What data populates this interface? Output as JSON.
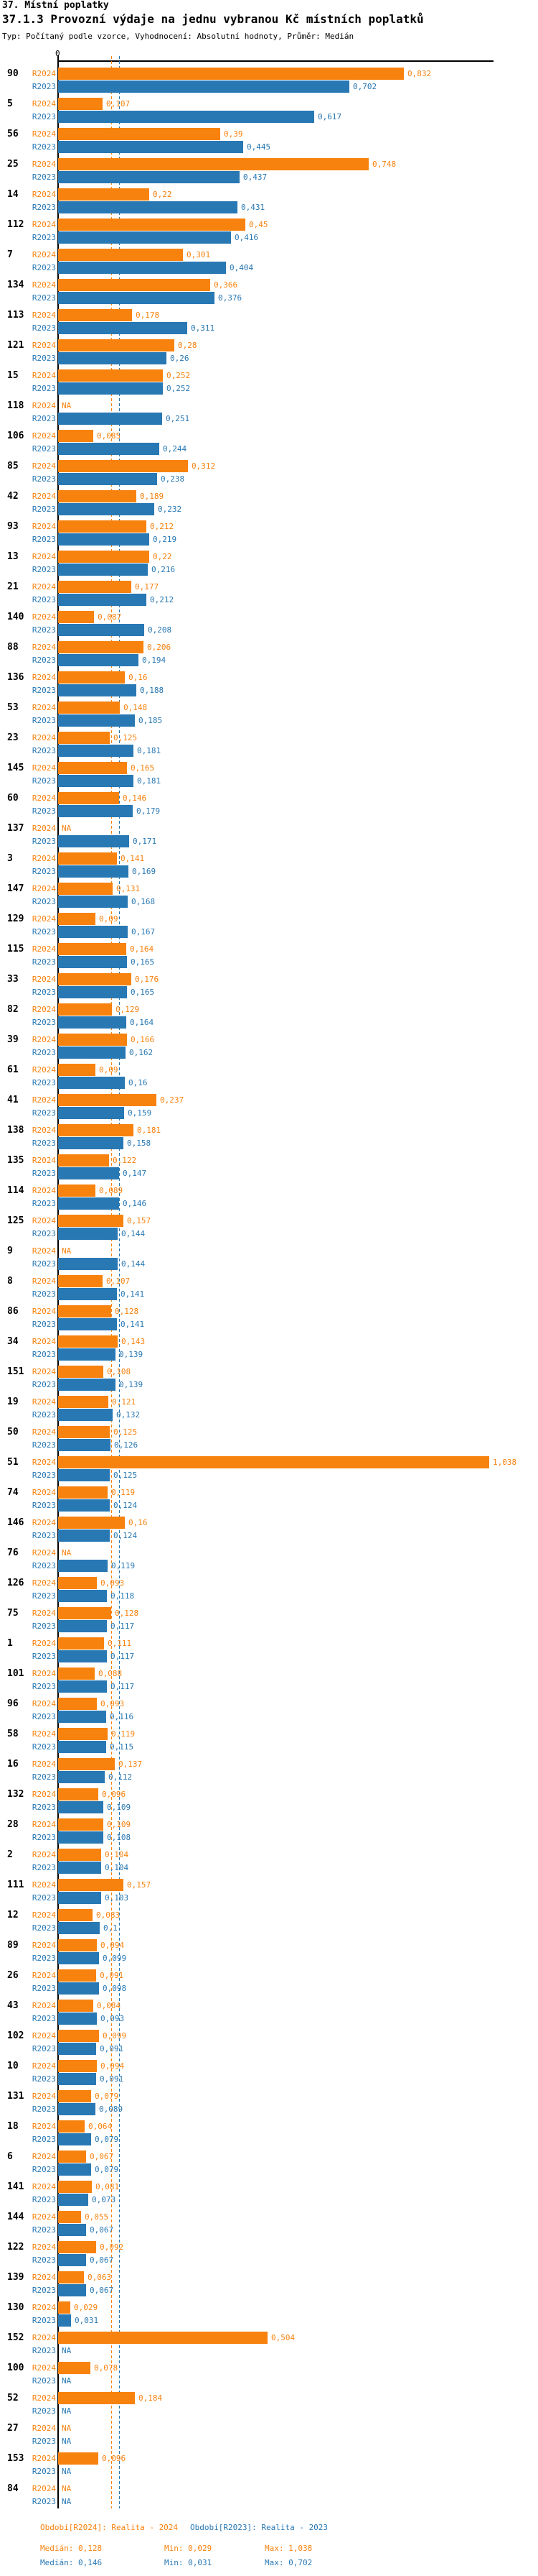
{
  "header": {
    "title": "37. Místní poplatky",
    "subtitle": "37.1.3 Provozní výdaje na jednu vybranou Kč místních poplatků",
    "meta": "Typ: Počítaný podle vzorce, Vyhodnocení: Absolutní hodnoty, Průměr: Medián"
  },
  "axis": {
    "zero_label": "0"
  },
  "na_label": "NA",
  "series": {
    "r2024": {
      "label": "R2024",
      "legend": "Období[R2024]: Realita - 2024",
      "median_label": "Medián: 0,128",
      "min_label": "Min: 0,029",
      "max_label": "Max: 1,038",
      "color": "#F8820E",
      "median": 0.128
    },
    "r2023": {
      "label": "R2023",
      "legend": "Období[R2023]: Realita - 2023",
      "median_label": "Medián: 0,146",
      "min_label": "Min: 0,031",
      "max_label": "Max: 0,702",
      "color": "#2878B4",
      "median": 0.146
    }
  },
  "chart_data": {
    "type": "bar",
    "orientation": "horizontal",
    "title": "37. Místní poplatky",
    "subtitle": "37.1.3 Provozní výdaje na jednu vybranou Kč místních poplatků",
    "note": "Typ: Počítaný podle vzorce, Vyhodnocení: Absolutní hodnoty, Průměr: Medián",
    "xlim": [
      0,
      1.05
    ],
    "x_ticks": [
      "0"
    ],
    "legend_position": "bottom",
    "series_meta": [
      {
        "name": "R2024",
        "legend": "Období[R2024]: Realita - 2024",
        "median": 0.128,
        "min": 0.029,
        "max": 1.038,
        "color": "#F8820E"
      },
      {
        "name": "R2023",
        "legend": "Období[R2023]: Realita - 2023",
        "median": 0.146,
        "min": 0.031,
        "max": 0.702,
        "color": "#2878B4"
      }
    ],
    "groups": [
      {
        "id": "90",
        "r2024": 0.832,
        "r2024_label": "0,832",
        "r2023": 0.702,
        "r2023_label": "0,702"
      },
      {
        "id": "5",
        "r2024": 0.107,
        "r2024_label": "0,107",
        "r2023": 0.617,
        "r2023_label": "0,617"
      },
      {
        "id": "56",
        "r2024": 0.39,
        "r2024_label": "0,39",
        "r2023": 0.445,
        "r2023_label": "0,445"
      },
      {
        "id": "25",
        "r2024": 0.748,
        "r2024_label": "0,748",
        "r2023": 0.437,
        "r2023_label": "0,437"
      },
      {
        "id": "14",
        "r2024": 0.22,
        "r2024_label": "0,22",
        "r2023": 0.431,
        "r2023_label": "0,431"
      },
      {
        "id": "112",
        "r2024": 0.45,
        "r2024_label": "0,45",
        "r2023": 0.416,
        "r2023_label": "0,416"
      },
      {
        "id": "7",
        "r2024": 0.301,
        "r2024_label": "0,301",
        "r2023": 0.404,
        "r2023_label": "0,404"
      },
      {
        "id": "134",
        "r2024": 0.366,
        "r2024_label": "0,366",
        "r2023": 0.376,
        "r2023_label": "0,376"
      },
      {
        "id": "113",
        "r2024": 0.178,
        "r2024_label": "0,178",
        "r2023": 0.311,
        "r2023_label": "0,311"
      },
      {
        "id": "121",
        "r2024": 0.28,
        "r2024_label": "0,28",
        "r2023": 0.26,
        "r2023_label": "0,26"
      },
      {
        "id": "15",
        "r2024": 0.252,
        "r2024_label": "0,252",
        "r2023": 0.252,
        "r2023_label": "0,252"
      },
      {
        "id": "118",
        "r2024": null,
        "r2024_label": "NA",
        "r2023": 0.251,
        "r2023_label": "0,251"
      },
      {
        "id": "106",
        "r2024": 0.085,
        "r2024_label": "0,085",
        "r2023": 0.244,
        "r2023_label": "0,244"
      },
      {
        "id": "85",
        "r2024": 0.312,
        "r2024_label": "0,312",
        "r2023": 0.238,
        "r2023_label": "0,238"
      },
      {
        "id": "42",
        "r2024": 0.189,
        "r2024_label": "0,189",
        "r2023": 0.232,
        "r2023_label": "0,232"
      },
      {
        "id": "93",
        "r2024": 0.212,
        "r2024_label": "0,212",
        "r2023": 0.219,
        "r2023_label": "0,219"
      },
      {
        "id": "13",
        "r2024": 0.22,
        "r2024_label": "0,22",
        "r2023": 0.216,
        "r2023_label": "0,216"
      },
      {
        "id": "21",
        "r2024": 0.177,
        "r2024_label": "0,177",
        "r2023": 0.212,
        "r2023_label": "0,212"
      },
      {
        "id": "140",
        "r2024": 0.087,
        "r2024_label": "0,087",
        "r2023": 0.208,
        "r2023_label": "0,208"
      },
      {
        "id": "88",
        "r2024": 0.206,
        "r2024_label": "0,206",
        "r2023": 0.194,
        "r2023_label": "0,194"
      },
      {
        "id": "136",
        "r2024": 0.16,
        "r2024_label": "0,16",
        "r2023": 0.188,
        "r2023_label": "0,188"
      },
      {
        "id": "53",
        "r2024": 0.148,
        "r2024_label": "0,148",
        "r2023": 0.185,
        "r2023_label": "0,185"
      },
      {
        "id": "23",
        "r2024": 0.125,
        "r2024_label": "0,125",
        "r2023": 0.181,
        "r2023_label": "0,181"
      },
      {
        "id": "145",
        "r2024": 0.165,
        "r2024_label": "0,165",
        "r2023": 0.181,
        "r2023_label": "0,181"
      },
      {
        "id": "60",
        "r2024": 0.146,
        "r2024_label": "0,146",
        "r2023": 0.179,
        "r2023_label": "0,179"
      },
      {
        "id": "137",
        "r2024": null,
        "r2024_label": "NA",
        "r2023": 0.171,
        "r2023_label": "0,171"
      },
      {
        "id": "3",
        "r2024": 0.141,
        "r2024_label": "0,141",
        "r2023": 0.169,
        "r2023_label": "0,169"
      },
      {
        "id": "147",
        "r2024": 0.131,
        "r2024_label": "0,131",
        "r2023": 0.168,
        "r2023_label": "0,168"
      },
      {
        "id": "129",
        "r2024": 0.09,
        "r2024_label": "0,09",
        "r2023": 0.167,
        "r2023_label": "0,167"
      },
      {
        "id": "115",
        "r2024": 0.164,
        "r2024_label": "0,164",
        "r2023": 0.165,
        "r2023_label": "0,165"
      },
      {
        "id": "33",
        "r2024": 0.176,
        "r2024_label": "0,176",
        "r2023": 0.165,
        "r2023_label": "0,165"
      },
      {
        "id": "82",
        "r2024": 0.129,
        "r2024_label": "0,129",
        "r2023": 0.164,
        "r2023_label": "0,164"
      },
      {
        "id": "39",
        "r2024": 0.166,
        "r2024_label": "0,166",
        "r2023": 0.162,
        "r2023_label": "0,162"
      },
      {
        "id": "61",
        "r2024": 0.09,
        "r2024_label": "0,09",
        "r2023": 0.16,
        "r2023_label": "0,16"
      },
      {
        "id": "41",
        "r2024": 0.237,
        "r2024_label": "0,237",
        "r2023": 0.159,
        "r2023_label": "0,159"
      },
      {
        "id": "138",
        "r2024": 0.181,
        "r2024_label": "0,181",
        "r2023": 0.158,
        "r2023_label": "0,158"
      },
      {
        "id": "135",
        "r2024": 0.122,
        "r2024_label": "0,122",
        "r2023": 0.147,
        "r2023_label": "0,147"
      },
      {
        "id": "114",
        "r2024": 0.089,
        "r2024_label": "0,089",
        "r2023": 0.146,
        "r2023_label": "0,146"
      },
      {
        "id": "125",
        "r2024": 0.157,
        "r2024_label": "0,157",
        "r2023": 0.144,
        "r2023_label": "0,144"
      },
      {
        "id": "9",
        "r2024": null,
        "r2024_label": "NA",
        "r2023": 0.144,
        "r2023_label": "0,144"
      },
      {
        "id": "8",
        "r2024": 0.107,
        "r2024_label": "0,107",
        "r2023": 0.141,
        "r2023_label": "0,141"
      },
      {
        "id": "86",
        "r2024": 0.128,
        "r2024_label": "0,128",
        "r2023": 0.141,
        "r2023_label": "0,141"
      },
      {
        "id": "34",
        "r2024": 0.143,
        "r2024_label": "0,143",
        "r2023": 0.139,
        "r2023_label": "0,139"
      },
      {
        "id": "151",
        "r2024": 0.108,
        "r2024_label": "0,108",
        "r2023": 0.139,
        "r2023_label": "0,139"
      },
      {
        "id": "19",
        "r2024": 0.121,
        "r2024_label": "0,121",
        "r2023": 0.132,
        "r2023_label": "0,132"
      },
      {
        "id": "50",
        "r2024": 0.125,
        "r2024_label": "0,125",
        "r2023": 0.126,
        "r2023_label": "0,126"
      },
      {
        "id": "51",
        "r2024": 1.038,
        "r2024_label": "1,038",
        "r2023": 0.125,
        "r2023_label": "0,125"
      },
      {
        "id": "74",
        "r2024": 0.119,
        "r2024_label": "0,119",
        "r2023": 0.124,
        "r2023_label": "0,124"
      },
      {
        "id": "146",
        "r2024": 0.16,
        "r2024_label": "0,16",
        "r2023": 0.124,
        "r2023_label": "0,124"
      },
      {
        "id": "76",
        "r2024": null,
        "r2024_label": "NA",
        "r2023": 0.119,
        "r2023_label": "0,119"
      },
      {
        "id": "126",
        "r2024": 0.093,
        "r2024_label": "0,093",
        "r2023": 0.118,
        "r2023_label": "0,118"
      },
      {
        "id": "75",
        "r2024": 0.128,
        "r2024_label": "0,128",
        "r2023": 0.117,
        "r2023_label": "0,117"
      },
      {
        "id": "1",
        "r2024": 0.111,
        "r2024_label": "0,111",
        "r2023": 0.117,
        "r2023_label": "0,117"
      },
      {
        "id": "101",
        "r2024": 0.088,
        "r2024_label": "0,088",
        "r2023": 0.117,
        "r2023_label": "0,117"
      },
      {
        "id": "96",
        "r2024": 0.093,
        "r2024_label": "0,093",
        "r2023": 0.116,
        "r2023_label": "0,116"
      },
      {
        "id": "58",
        "r2024": 0.119,
        "r2024_label": "0,119",
        "r2023": 0.115,
        "r2023_label": "0,115"
      },
      {
        "id": "16",
        "r2024": 0.137,
        "r2024_label": "0,137",
        "r2023": 0.112,
        "r2023_label": "0,112"
      },
      {
        "id": "132",
        "r2024": 0.096,
        "r2024_label": "0,096",
        "r2023": 0.109,
        "r2023_label": "0,109"
      },
      {
        "id": "28",
        "r2024": 0.109,
        "r2024_label": "0,109",
        "r2023": 0.108,
        "r2023_label": "0,108"
      },
      {
        "id": "2",
        "r2024": 0.104,
        "r2024_label": "0,104",
        "r2023": 0.104,
        "r2023_label": "0,104"
      },
      {
        "id": "111",
        "r2024": 0.157,
        "r2024_label": "0,157",
        "r2023": 0.103,
        "r2023_label": "0,103"
      },
      {
        "id": "12",
        "r2024": 0.083,
        "r2024_label": "0,083",
        "r2023": 0.1,
        "r2023_label": "0,1"
      },
      {
        "id": "89",
        "r2024": 0.094,
        "r2024_label": "0,094",
        "r2023": 0.099,
        "r2023_label": "0,099"
      },
      {
        "id": "26",
        "r2024": 0.091,
        "r2024_label": "0,091",
        "r2023": 0.098,
        "r2023_label": "0,098"
      },
      {
        "id": "43",
        "r2024": 0.084,
        "r2024_label": "0,084",
        "r2023": 0.093,
        "r2023_label": "0,093"
      },
      {
        "id": "102",
        "r2024": 0.099,
        "r2024_label": "0,099",
        "r2023": 0.091,
        "r2023_label": "0,091"
      },
      {
        "id": "10",
        "r2024": 0.094,
        "r2024_label": "0,094",
        "r2023": 0.091,
        "r2023_label": "0,091"
      },
      {
        "id": "131",
        "r2024": 0.079,
        "r2024_label": "0,079",
        "r2023": 0.089,
        "r2023_label": "0,089"
      },
      {
        "id": "18",
        "r2024": 0.064,
        "r2024_label": "0,064",
        "r2023": 0.079,
        "r2023_label": "0,079"
      },
      {
        "id": "6",
        "r2024": 0.067,
        "r2024_label": "0,067",
        "r2023": 0.079,
        "r2023_label": "0,079"
      },
      {
        "id": "141",
        "r2024": 0.081,
        "r2024_label": "0,081",
        "r2023": 0.073,
        "r2023_label": "0,073"
      },
      {
        "id": "144",
        "r2024": 0.055,
        "r2024_label": "0,055",
        "r2023": 0.067,
        "r2023_label": "0,067"
      },
      {
        "id": "122",
        "r2024": 0.092,
        "r2024_label": "0,092",
        "r2023": 0.067,
        "r2023_label": "0,067"
      },
      {
        "id": "139",
        "r2024": 0.063,
        "r2024_label": "0,063",
        "r2023": 0.067,
        "r2023_label": "0,067"
      },
      {
        "id": "130",
        "r2024": 0.029,
        "r2024_label": "0,029",
        "r2023": 0.031,
        "r2023_label": "0,031"
      },
      {
        "id": "152",
        "r2024": 0.504,
        "r2024_label": "0,504",
        "r2023": null,
        "r2023_label": "NA"
      },
      {
        "id": "100",
        "r2024": 0.078,
        "r2024_label": "0,078",
        "r2023": null,
        "r2023_label": "NA"
      },
      {
        "id": "52",
        "r2024": 0.184,
        "r2024_label": "0,184",
        "r2023": null,
        "r2023_label": "NA"
      },
      {
        "id": "27",
        "r2024": null,
        "r2024_label": "NA",
        "r2023": null,
        "r2023_label": "NA"
      },
      {
        "id": "153",
        "r2024": 0.096,
        "r2024_label": "0,096",
        "r2023": null,
        "r2023_label": "NA"
      },
      {
        "id": "84",
        "r2024": null,
        "r2024_label": "NA",
        "r2023": null,
        "r2023_label": "NA"
      }
    ]
  }
}
